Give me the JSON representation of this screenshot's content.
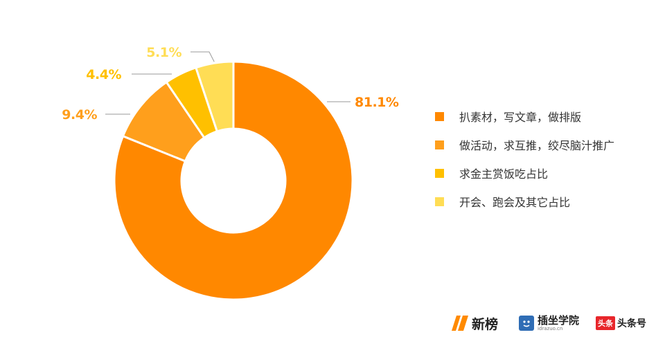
{
  "chart_data": {
    "type": "pie",
    "donut": true,
    "categories": [
      "扒素材，写文章，做排版",
      "做活动，求互推，绞尽脑汁推广",
      "求金主赏饭吃占比",
      "开会、跑会及其它占比"
    ],
    "values": [
      81.1,
      9.4,
      4.4,
      5.1
    ],
    "labels": [
      "81.1%",
      "9.4%",
      "4.4%",
      "5.1%"
    ],
    "colors": [
      "#FF8800",
      "#FF9F1C",
      "#FFC000",
      "#FFDD55"
    ],
    "legend_position": "right"
  },
  "logos": {
    "newrank": {
      "name": "新榜",
      "icon": "newrank-logo-icon",
      "color": "#FF8A00"
    },
    "chazuo": {
      "name": "插坐学院",
      "sub": "idrazuo.cn",
      "icon": "chazuo-logo-icon",
      "color": "#2F6DB5"
    },
    "toutiao": {
      "badge": "头条",
      "name": "头条号",
      "icon": "toutiao-logo-icon",
      "color": "#E8262B"
    }
  }
}
